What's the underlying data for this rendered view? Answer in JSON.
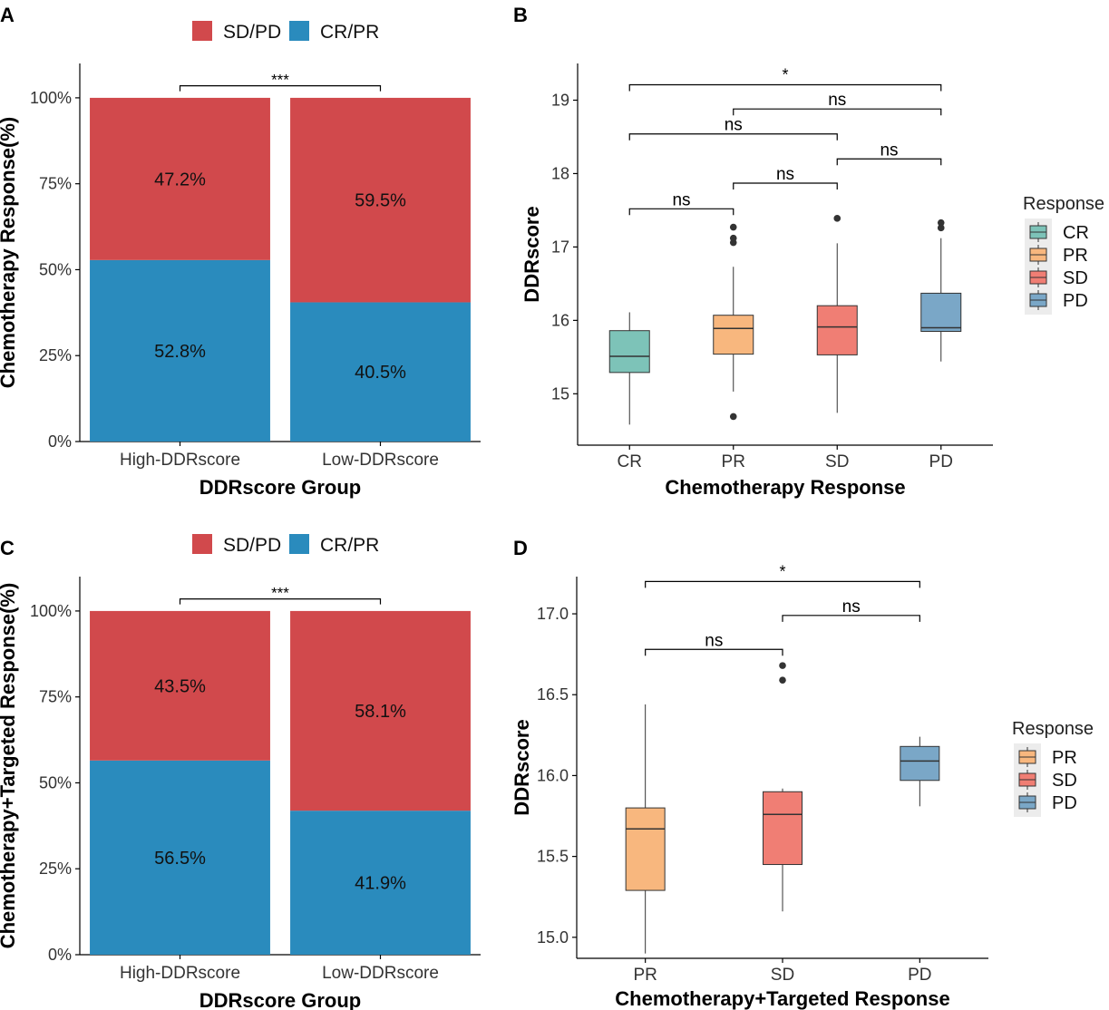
{
  "colors": {
    "sdpd": "#d1494c",
    "crpr": "#2a8bbd",
    "CR": "#7dc3b8",
    "PR": "#f8b77e",
    "SD": "#f07e74",
    "PD": "#7aa7c7"
  },
  "chart_data": [
    {
      "panel": "A",
      "type": "bar",
      "stacked": true,
      "categories": [
        "High-DDRscore",
        "Low-DDRscore"
      ],
      "series": [
        {
          "name": "CR/PR",
          "values": [
            52.8,
            40.5
          ],
          "labels": [
            "52.8%",
            "40.5%"
          ]
        },
        {
          "name": "SD/PD",
          "values": [
            47.2,
            59.5
          ],
          "labels": [
            "47.2%",
            "59.5%"
          ]
        }
      ],
      "legend": [
        "SD/PD",
        "CR/PR"
      ],
      "legend_position": "top",
      "xlabel": "DDRscore Group",
      "ylabel": "Chemotherapy Response(%)",
      "yticks": [
        0,
        25,
        50,
        75,
        100
      ],
      "ytick_labels": [
        "0%",
        "25%",
        "50%",
        "75%",
        "100%"
      ],
      "ylim": [
        0,
        110
      ],
      "significance": [
        {
          "from": 0,
          "to": 1,
          "label": "***",
          "y": 103.5
        }
      ]
    },
    {
      "panel": "B",
      "type": "box",
      "categories": [
        "CR",
        "PR",
        "SD",
        "PD"
      ],
      "boxes": [
        {
          "q1": 15.29,
          "median": 15.51,
          "q3": 15.86,
          "whisker_low": 14.58,
          "whisker_high": 16.11,
          "outliers": []
        },
        {
          "q1": 15.54,
          "median": 15.89,
          "q3": 16.07,
          "whisker_low": 15.03,
          "whisker_high": 16.73,
          "outliers": [
            14.69,
            17.06,
            17.12,
            17.27
          ]
        },
        {
          "q1": 15.53,
          "median": 15.91,
          "q3": 16.2,
          "whisker_low": 14.74,
          "whisker_high": 17.05,
          "outliers": [
            17.39
          ]
        },
        {
          "q1": 15.85,
          "median": 15.9,
          "q3": 16.37,
          "whisker_low": 15.44,
          "whisker_high": 17.12,
          "outliers": [
            17.26,
            17.33
          ]
        }
      ],
      "xlabel": "Chemotherapy Response",
      "ylabel": "DDRscore",
      "yticks": [
        15,
        16,
        17,
        18,
        19
      ],
      "ytick_labels": [
        "15",
        "16",
        "17",
        "18",
        "19"
      ],
      "ylim": [
        14.3,
        19.5
      ],
      "legend_title": "Response",
      "legend": [
        "CR",
        "PR",
        "SD",
        "PD"
      ],
      "legend_position": "right",
      "significance": [
        {
          "from": 0,
          "to": 1,
          "label": "ns",
          "y": 17.52
        },
        {
          "from": 1,
          "to": 2,
          "label": "ns",
          "y": 17.87
        },
        {
          "from": 2,
          "to": 3,
          "label": "ns",
          "y": 18.2
        },
        {
          "from": 0,
          "to": 2,
          "label": "ns",
          "y": 18.54
        },
        {
          "from": 1,
          "to": 3,
          "label": "ns",
          "y": 18.88
        },
        {
          "from": 0,
          "to": 3,
          "label": "*",
          "y": 19.21
        }
      ]
    },
    {
      "panel": "C",
      "type": "bar",
      "stacked": true,
      "categories": [
        "High-DDRscore",
        "Low-DDRscore"
      ],
      "series": [
        {
          "name": "CR/PR",
          "values": [
            56.5,
            41.9
          ],
          "labels": [
            "56.5%",
            "41.9%"
          ]
        },
        {
          "name": "SD/PD",
          "values": [
            43.5,
            58.1
          ],
          "labels": [
            "43.5%",
            "58.1%"
          ]
        }
      ],
      "legend": [
        "SD/PD",
        "CR/PR"
      ],
      "legend_position": "top",
      "xlabel": "DDRscore Group",
      "ylabel": "Chemotherapy+Targeted Response(%)",
      "yticks": [
        0,
        25,
        50,
        75,
        100
      ],
      "ytick_labels": [
        "0%",
        "25%",
        "50%",
        "75%",
        "100%"
      ],
      "ylim": [
        0,
        110
      ],
      "significance": [
        {
          "from": 0,
          "to": 1,
          "label": "***",
          "y": 103.5
        }
      ]
    },
    {
      "panel": "D",
      "type": "box",
      "categories": [
        "PR",
        "SD",
        "PD"
      ],
      "boxes": [
        {
          "q1": 15.29,
          "median": 15.67,
          "q3": 15.8,
          "whisker_low": 14.9,
          "whisker_high": 16.44,
          "outliers": []
        },
        {
          "q1": 15.45,
          "median": 15.76,
          "q3": 15.9,
          "whisker_low": 15.16,
          "whisker_high": 15.92,
          "outliers": [
            16.59,
            16.68
          ]
        },
        {
          "q1": 15.97,
          "median": 16.09,
          "q3": 16.18,
          "whisker_low": 15.81,
          "whisker_high": 16.24,
          "outliers": []
        }
      ],
      "xlabel": "Chemotherapy+Targeted Response",
      "ylabel": "DDRscore",
      "yticks": [
        15,
        15.5,
        16,
        16.5,
        17
      ],
      "ytick_labels": [
        "15.0",
        "15.5",
        "16.0",
        "16.5",
        "17.0"
      ],
      "ylim": [
        14.87,
        17.23
      ],
      "legend_title": "Response",
      "legend": [
        "PR",
        "SD",
        "PD"
      ],
      "legend_position": "right",
      "significance": [
        {
          "from": 0,
          "to": 1,
          "label": "ns",
          "y": 16.78
        },
        {
          "from": 1,
          "to": 2,
          "label": "ns",
          "y": 16.99
        },
        {
          "from": 0,
          "to": 2,
          "label": "*",
          "y": 17.2
        }
      ]
    }
  ]
}
